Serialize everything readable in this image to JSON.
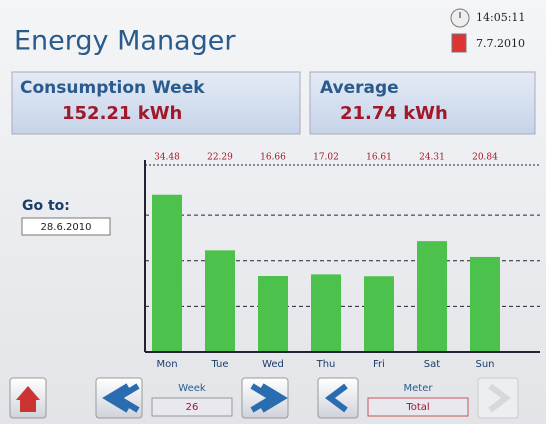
{
  "header": {
    "title": "Energy Manager",
    "time": "14:05:11",
    "date": "7.7.2010"
  },
  "summary": [
    {
      "label": "Consumption Week",
      "value": "152.21 kWh"
    },
    {
      "label": "Average",
      "value": "21.74 kWh"
    }
  ],
  "goto": {
    "label": "Go to:",
    "date": "28.6.2010"
  },
  "chart_data": {
    "type": "bar",
    "categories": [
      "Mon",
      "Tue",
      "Wed",
      "Thu",
      "Fri",
      "Sat",
      "Sun"
    ],
    "values": [
      34.48,
      22.29,
      16.66,
      17.02,
      16.61,
      24.31,
      20.84
    ],
    "color": "#4cc24c",
    "ylim": [
      0,
      41
    ],
    "yticks": [
      10,
      20,
      30
    ],
    "grid": true
  },
  "nav": {
    "week_label": "Week",
    "week": "26",
    "meter_label": "Meter",
    "meter": "Total"
  }
}
